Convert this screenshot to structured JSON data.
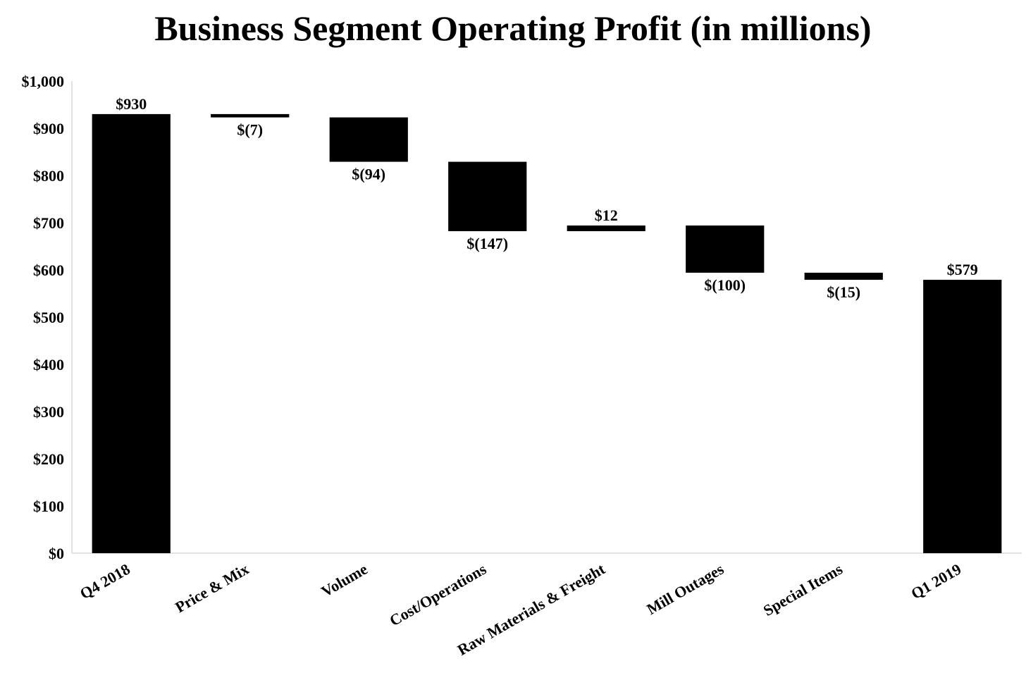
{
  "chart_data": {
    "type": "bar",
    "subtype": "waterfall",
    "title": "Business Segment Operating Profit (in millions)",
    "xlabel": "",
    "ylabel": "",
    "ylim": [
      0,
      1000
    ],
    "yticks": [
      0,
      100,
      200,
      300,
      400,
      500,
      600,
      700,
      800,
      900,
      1000
    ],
    "ytick_labels": [
      "$0",
      "$100",
      "$200",
      "$300",
      "$400",
      "$500",
      "$600",
      "$700",
      "$800",
      "$900",
      "$1,000"
    ],
    "grid": false,
    "legend": "none",
    "bar_color": "#000000",
    "categories": [
      "Q4 2018",
      "Price & Mix",
      "Volume",
      "Cost/Operations",
      "Raw Materials & Freight",
      "Mill Outages",
      "Special Items",
      "Q1 2019"
    ],
    "values": [
      930,
      -7,
      -94,
      -147,
      12,
      -100,
      -15,
      579
    ],
    "kinds": [
      "total",
      "delta",
      "delta",
      "delta",
      "delta",
      "delta",
      "delta",
      "total"
    ],
    "data_labels": [
      "$930",
      "$(7)",
      "$(94)",
      "$(147)",
      "$12",
      "$(100)",
      "$(15)",
      "$579"
    ]
  }
}
